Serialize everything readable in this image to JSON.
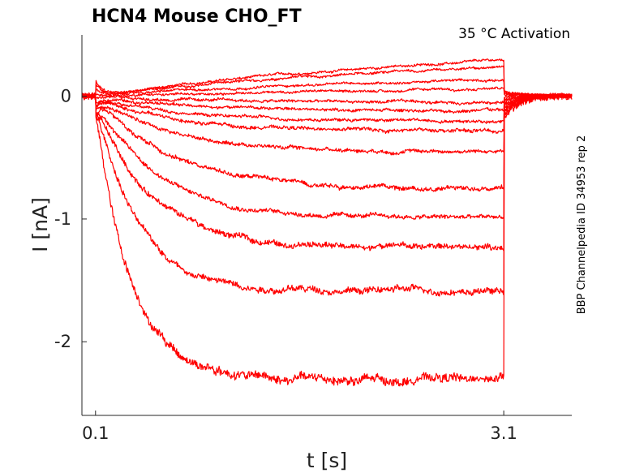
{
  "chart_data": {
    "type": "line",
    "title": "HCN4  Mouse  CHO_FT",
    "annotation": "35 °C  Activation",
    "side_label": "BBP Channelpedia ID 34953 rep 2",
    "xlabel": "t [s]",
    "ylabel": "I [nA]",
    "xlim": [
      0.0,
      3.6
    ],
    "ylim": [
      -2.6,
      0.5
    ],
    "xticks": [
      {
        "value": 0.1,
        "label": "0.1"
      },
      {
        "value": 3.1,
        "label": "3.1"
      }
    ],
    "yticks": [
      {
        "value": 0,
        "label": "0"
      },
      {
        "value": -1,
        "label": "-1"
      },
      {
        "value": -2,
        "label": "-2"
      }
    ],
    "grid": false,
    "color": "#ff0000",
    "step_start": 0.1,
    "step_end": 3.1,
    "series": [
      {
        "hold": 0.12,
        "pre": 0.2,
        "start_drift": 0.13,
        "tau": 1.5,
        "post": 0.02,
        "noise": 0.008
      },
      {
        "hold": 0.1,
        "pre": 0.16,
        "start_drift": 0.1,
        "tau": 1.5,
        "post": 0.01,
        "noise": 0.008
      },
      {
        "hold": 0.07,
        "pre": 0.07,
        "start_drift": 0.06,
        "tau": 1.0,
        "post": 0.0,
        "noise": 0.008
      },
      {
        "hold": 0.04,
        "pre": 0.02,
        "start_drift": 0.02,
        "tau": 1.0,
        "post": -0.01,
        "noise": 0.008
      },
      {
        "hold": 0.0,
        "pre": -0.05,
        "start_drift": -0.02,
        "tau": 0.8,
        "post": -0.03,
        "noise": 0.01
      },
      {
        "hold": 0.0,
        "pre": -0.12,
        "start_drift": -0.06,
        "tau": 0.7,
        "post": -0.05,
        "noise": 0.01
      },
      {
        "hold": 0.0,
        "pre": -0.2,
        "start_drift": -0.08,
        "tau": 0.6,
        "post": -0.06,
        "noise": 0.01
      },
      {
        "hold": 0.0,
        "pre": -0.28,
        "start_drift": -0.1,
        "tau": 0.55,
        "post": -0.08,
        "noise": 0.012
      },
      {
        "hold": 0.0,
        "pre": -0.45,
        "start_drift": -0.12,
        "tau": 0.55,
        "post": -0.1,
        "noise": 0.012
      },
      {
        "hold": 0.0,
        "pre": -0.75,
        "start_drift": -0.15,
        "tau": 0.55,
        "post": -0.12,
        "noise": 0.015
      },
      {
        "hold": 0.0,
        "pre": -0.99,
        "start_drift": -0.15,
        "tau": 0.45,
        "post": -0.14,
        "noise": 0.015
      },
      {
        "hold": 0.0,
        "pre": -1.23,
        "start_drift": -0.15,
        "tau": 0.38,
        "post": -0.16,
        "noise": 0.02
      },
      {
        "hold": 0.0,
        "pre": -1.58,
        "start_drift": -0.15,
        "tau": 0.3,
        "post": -0.18,
        "noise": 0.022
      },
      {
        "hold": 0.0,
        "pre": -2.3,
        "start_drift": -0.15,
        "tau": 0.25,
        "post": -0.2,
        "noise": 0.03
      }
    ]
  }
}
